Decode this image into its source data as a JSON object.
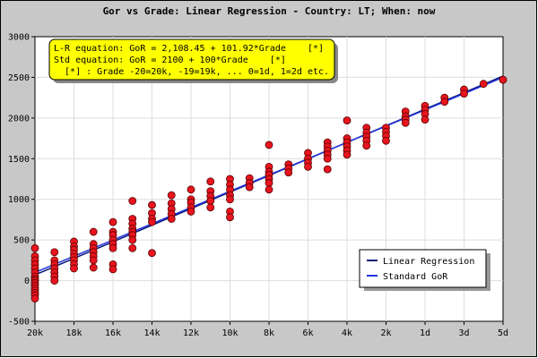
{
  "chart_data": {
    "type": "scatter",
    "title": "Gor vs Grade: Linear Regression - Country: LT; When: now",
    "xlabel": "",
    "ylabel": "",
    "x_ticks": [
      "20k",
      "18k",
      "16k",
      "14k",
      "12k",
      "10k",
      "8k",
      "6k",
      "4k",
      "2k",
      "1d",
      "3d",
      "5d"
    ],
    "xlim": [
      -20,
      4
    ],
    "ylim": [
      -500,
      3000
    ],
    "y_ticks": [
      -500,
      0,
      500,
      1000,
      1500,
      2000,
      2500,
      3000
    ],
    "grid": true,
    "annotation_lines": [
      "L-R equation: GoR = 2,108.45 + 101.92*Grade    [*]",
      "Std equation: GoR = 2100 + 100*Grade    [*]",
      "  [*] : Grade -20=20k, -19=19k, ... 0=1d, 1=2d etc."
    ],
    "legend": {
      "position": "bottom-right",
      "entries": [
        {
          "label": "Linear Regression",
          "color": "#0a1a7a"
        },
        {
          "label": "Standard GoR",
          "color": "#2233dd"
        }
      ]
    },
    "lines": [
      {
        "name": "Linear Regression",
        "intercept": 2108.45,
        "slope": 101.92,
        "color": "#0a1a7a"
      },
      {
        "name": "Standard GoR",
        "intercept": 2100,
        "slope": 100,
        "color": "#2233dd"
      }
    ],
    "points": [
      {
        "x": -20,
        "y": 400
      },
      {
        "x": -20,
        "y": 300
      },
      {
        "x": -20,
        "y": 250
      },
      {
        "x": -20,
        "y": 200
      },
      {
        "x": -20,
        "y": 150
      },
      {
        "x": -20,
        "y": 100
      },
      {
        "x": -20,
        "y": 50
      },
      {
        "x": -20,
        "y": 20
      },
      {
        "x": -20,
        "y": 0
      },
      {
        "x": -20,
        "y": -30
      },
      {
        "x": -20,
        "y": -60
      },
      {
        "x": -20,
        "y": -90
      },
      {
        "x": -20,
        "y": -120
      },
      {
        "x": -20,
        "y": -150
      },
      {
        "x": -20,
        "y": -180
      },
      {
        "x": -20,
        "y": -220
      },
      {
        "x": -19,
        "y": 350
      },
      {
        "x": -19,
        "y": 250
      },
      {
        "x": -19,
        "y": 200
      },
      {
        "x": -19,
        "y": 150
      },
      {
        "x": -19,
        "y": 100
      },
      {
        "x": -19,
        "y": 50
      },
      {
        "x": -19,
        "y": 0
      },
      {
        "x": -18,
        "y": 480
      },
      {
        "x": -18,
        "y": 420
      },
      {
        "x": -18,
        "y": 380
      },
      {
        "x": -18,
        "y": 330
      },
      {
        "x": -18,
        "y": 290
      },
      {
        "x": -18,
        "y": 250
      },
      {
        "x": -18,
        "y": 200
      },
      {
        "x": -18,
        "y": 150
      },
      {
        "x": -17,
        "y": 600
      },
      {
        "x": -17,
        "y": 450
      },
      {
        "x": -17,
        "y": 400
      },
      {
        "x": -17,
        "y": 350
      },
      {
        "x": -17,
        "y": 300
      },
      {
        "x": -17,
        "y": 250
      },
      {
        "x": -17,
        "y": 160
      },
      {
        "x": -16,
        "y": 720
      },
      {
        "x": -16,
        "y": 600
      },
      {
        "x": -16,
        "y": 560
      },
      {
        "x": -16,
        "y": 500
      },
      {
        "x": -16,
        "y": 450
      },
      {
        "x": -16,
        "y": 400
      },
      {
        "x": -16,
        "y": 200
      },
      {
        "x": -16,
        "y": 140
      },
      {
        "x": -15,
        "y": 980
      },
      {
        "x": -15,
        "y": 760
      },
      {
        "x": -15,
        "y": 700
      },
      {
        "x": -15,
        "y": 640
      },
      {
        "x": -15,
        "y": 600
      },
      {
        "x": -15,
        "y": 560
      },
      {
        "x": -15,
        "y": 500
      },
      {
        "x": -15,
        "y": 400
      },
      {
        "x": -14,
        "y": 930
      },
      {
        "x": -14,
        "y": 830
      },
      {
        "x": -14,
        "y": 760
      },
      {
        "x": -14,
        "y": 720
      },
      {
        "x": -14,
        "y": 340
      },
      {
        "x": -13,
        "y": 1050
      },
      {
        "x": -13,
        "y": 950
      },
      {
        "x": -13,
        "y": 880
      },
      {
        "x": -13,
        "y": 820
      },
      {
        "x": -13,
        "y": 760
      },
      {
        "x": -12,
        "y": 1120
      },
      {
        "x": -12,
        "y": 1000
      },
      {
        "x": -12,
        "y": 960
      },
      {
        "x": -12,
        "y": 900
      },
      {
        "x": -12,
        "y": 850
      },
      {
        "x": -11,
        "y": 1220
      },
      {
        "x": -11,
        "y": 1100
      },
      {
        "x": -11,
        "y": 1040
      },
      {
        "x": -11,
        "y": 980
      },
      {
        "x": -11,
        "y": 900
      },
      {
        "x": -10,
        "y": 1250
      },
      {
        "x": -10,
        "y": 1180
      },
      {
        "x": -10,
        "y": 1120
      },
      {
        "x": -10,
        "y": 1050
      },
      {
        "x": -10,
        "y": 1000
      },
      {
        "x": -10,
        "y": 850
      },
      {
        "x": -10,
        "y": 780
      },
      {
        "x": -9,
        "y": 1260
      },
      {
        "x": -9,
        "y": 1200
      },
      {
        "x": -9,
        "y": 1150
      },
      {
        "x": -8,
        "y": 1670
      },
      {
        "x": -8,
        "y": 1400
      },
      {
        "x": -8,
        "y": 1340
      },
      {
        "x": -8,
        "y": 1300
      },
      {
        "x": -8,
        "y": 1250
      },
      {
        "x": -8,
        "y": 1200
      },
      {
        "x": -8,
        "y": 1120
      },
      {
        "x": -7,
        "y": 1430
      },
      {
        "x": -7,
        "y": 1380
      },
      {
        "x": -7,
        "y": 1330
      },
      {
        "x": -6,
        "y": 1570
      },
      {
        "x": -6,
        "y": 1500
      },
      {
        "x": -6,
        "y": 1450
      },
      {
        "x": -6,
        "y": 1400
      },
      {
        "x": -5,
        "y": 1700
      },
      {
        "x": -5,
        "y": 1650
      },
      {
        "x": -5,
        "y": 1600
      },
      {
        "x": -5,
        "y": 1550
      },
      {
        "x": -5,
        "y": 1500
      },
      {
        "x": -5,
        "y": 1370
      },
      {
        "x": -4,
        "y": 1970
      },
      {
        "x": -4,
        "y": 1750
      },
      {
        "x": -4,
        "y": 1700
      },
      {
        "x": -4,
        "y": 1650
      },
      {
        "x": -4,
        "y": 1600
      },
      {
        "x": -4,
        "y": 1550
      },
      {
        "x": -3,
        "y": 1880
      },
      {
        "x": -3,
        "y": 1820
      },
      {
        "x": -3,
        "y": 1770
      },
      {
        "x": -3,
        "y": 1720
      },
      {
        "x": -3,
        "y": 1660
      },
      {
        "x": -2,
        "y": 1880
      },
      {
        "x": -2,
        "y": 1830
      },
      {
        "x": -2,
        "y": 1780
      },
      {
        "x": -2,
        "y": 1720
      },
      {
        "x": -1,
        "y": 2080
      },
      {
        "x": -1,
        "y": 2020
      },
      {
        "x": -1,
        "y": 1980
      },
      {
        "x": -1,
        "y": 1940
      },
      {
        "x": 0,
        "y": 2150
      },
      {
        "x": 0,
        "y": 2100
      },
      {
        "x": 0,
        "y": 2050
      },
      {
        "x": 0,
        "y": 1980
      },
      {
        "x": 1,
        "y": 2250
      },
      {
        "x": 1,
        "y": 2200
      },
      {
        "x": 2,
        "y": 2350
      },
      {
        "x": 2,
        "y": 2300
      },
      {
        "x": 3,
        "y": 2420
      },
      {
        "x": 4,
        "y": 2470
      }
    ]
  }
}
